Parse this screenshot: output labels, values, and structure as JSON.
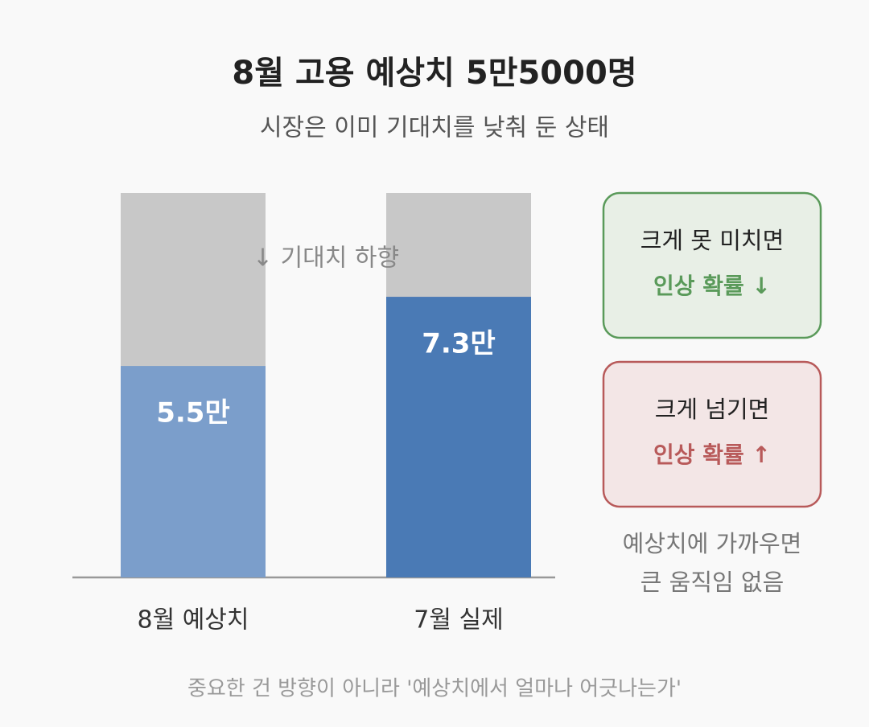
{
  "chart_data": {
    "type": "bar",
    "title": "8월 고용 예상치 5만5000명",
    "subtitle": "시장은 이미 기대치를 낮춰 둔 상태",
    "categories": [
      "8월 예상치",
      "7월 실제"
    ],
    "values": [
      5.5,
      7.3
    ],
    "value_labels": [
      "5.5만",
      "7.3만"
    ],
    "colors": [
      "#7b9ecb",
      "#4a7ab5"
    ],
    "ylim": [
      0,
      10
    ],
    "annotation": "↓ 기대치 하향",
    "callouts": [
      {
        "condition": "크게 못 미치면",
        "result": "인상 확률 ↓",
        "color": "#5a9a5a",
        "fill": "#e8efe6"
      },
      {
        "condition": "크게 넘기면",
        "result": "인상 확률 ↑",
        "color": "#b85a5a",
        "fill": "#f3e6e6"
      }
    ],
    "note": [
      "예상치에 가까우면",
      "큰 움직임 없음"
    ],
    "footer": "중요한 건 방향이 아니라 '예상치에서 얼마나 어긋나는가'"
  }
}
